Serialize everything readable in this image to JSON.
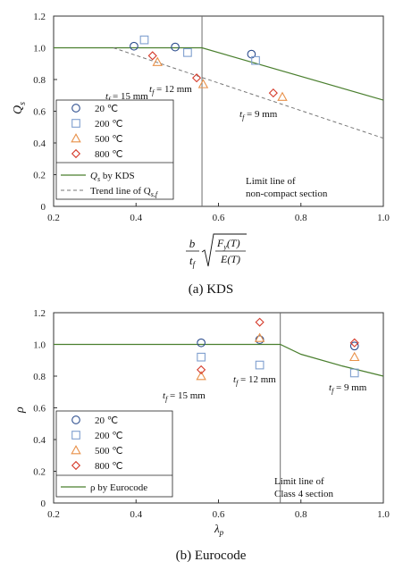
{
  "colors": {
    "line": "#4a7f2e",
    "c20": "#2f4f8f",
    "c200": "#7f9fcf",
    "c500": "#e8914a",
    "c800": "#d53a2a",
    "axis": "#333333",
    "limit": "#6d6d6d"
  },
  "chart_data": [
    {
      "type": "scatter",
      "caption": "(a) KDS",
      "ylabel_main": "Q",
      "ylabel_sub": "s",
      "xlabel_text": {
        "b": "b",
        "tf": "t",
        "tf_sub": "f",
        "num_main": "F",
        "num_sub": "y",
        "num_arg": "(T)",
        "den": "E(T)"
      },
      "xlim": [
        0.2,
        1.0
      ],
      "ylim": [
        0,
        1.2
      ],
      "xticks": [
        "0.2",
        "0.4",
        "0.6",
        "0.8",
        "1.0"
      ],
      "yticks": [
        "0",
        "0.2",
        "0.4",
        "0.6",
        "0.8",
        "1.0",
        "1.2"
      ],
      "xtick_values": [
        0.2,
        0.4,
        0.6,
        0.8,
        1.0
      ],
      "ytick_values": [
        0,
        0.2,
        0.4,
        0.6,
        0.8,
        1.0,
        1.2
      ],
      "series": [
        {
          "name": "20 ℃",
          "marker": "circle",
          "x": [
            0.395,
            0.495,
            0.68
          ],
          "y": [
            1.01,
            1.005,
            0.96
          ]
        },
        {
          "name": "200 ℃",
          "marker": "square",
          "x": [
            0.42,
            0.525,
            0.69
          ],
          "y": [
            1.05,
            0.97,
            0.92
          ]
        },
        {
          "name": "500 ℃",
          "marker": "triangle",
          "x": [
            0.452,
            0.563,
            0.755
          ],
          "y": [
            0.91,
            0.77,
            0.69
          ]
        },
        {
          "name": "800 ℃",
          "marker": "diamond",
          "x": [
            0.44,
            0.547,
            0.733
          ],
          "y": [
            0.95,
            0.81,
            0.715
          ]
        }
      ],
      "curves": [
        {
          "name": "Q_s by KDS",
          "style": "solid",
          "x": [
            0.2,
            0.56,
            1.0
          ],
          "y": [
            1.0,
            1.0,
            0.67
          ]
        },
        {
          "name": "Trend line of Q_s,f",
          "style": "dashed",
          "x": [
            0.345,
            1.0
          ],
          "y": [
            1.0,
            0.43
          ]
        }
      ],
      "limit_line_x": 0.56,
      "legend": {
        "items": [
          "20 ℃",
          "200 ℃",
          "500 ℃",
          "800 ℃"
        ],
        "kds_main": "Q",
        "kds_sub": "s",
        "kds_text": " by KDS",
        "trend_text": "Trend line of Q",
        "trend_sub": "s,f"
      },
      "annotations": [
        {
          "main": "t",
          "sub": "f",
          "text": " = 15 mm"
        },
        {
          "main": "t",
          "sub": "f",
          "text": " = 12 mm"
        },
        {
          "main": "t",
          "sub": "f",
          "text": " = 9 mm"
        }
      ],
      "limit_label": [
        "Limit line of",
        "non-compact section"
      ]
    },
    {
      "type": "scatter",
      "caption": "(b) Eurocode",
      "ylabel_main": "ρ",
      "xlabel_main": "λ",
      "xlabel_sub": "p",
      "xlim": [
        0.2,
        1.0
      ],
      "ylim": [
        0,
        1.2
      ],
      "xticks": [
        "0.2",
        "0.4",
        "0.6",
        "0.8",
        "1.0"
      ],
      "yticks": [
        "0",
        "0.2",
        "0.4",
        "0.6",
        "0.8",
        "1.0",
        "1.2"
      ],
      "xtick_values": [
        0.2,
        0.4,
        0.6,
        0.8,
        1.0
      ],
      "ytick_values": [
        0,
        0.2,
        0.4,
        0.6,
        0.8,
        1.0,
        1.2
      ],
      "series": [
        {
          "name": "20 ℃",
          "marker": "circle",
          "x": [
            0.558,
            0.7,
            0.93
          ],
          "y": [
            1.01,
            1.03,
            0.99
          ]
        },
        {
          "name": "200 ℃",
          "marker": "square",
          "x": [
            0.558,
            0.7,
            0.93
          ],
          "y": [
            0.92,
            0.87,
            0.82
          ]
        },
        {
          "name": "500 ℃",
          "marker": "triangle",
          "x": [
            0.558,
            0.7,
            0.93
          ],
          "y": [
            0.8,
            1.04,
            0.92
          ]
        },
        {
          "name": "800 ℃",
          "marker": "diamond",
          "x": [
            0.558,
            0.7,
            0.93
          ],
          "y": [
            0.84,
            1.14,
            1.01
          ]
        }
      ],
      "curves": [
        {
          "name": "ρ by Eurocode",
          "style": "solid",
          "x": [
            0.2,
            0.75,
            0.8,
            0.9,
            1.0
          ],
          "y": [
            1.0,
            1.0,
            0.938,
            0.864,
            0.8
          ]
        }
      ],
      "limit_line_x": 0.75,
      "legend": {
        "items": [
          "20 ℃",
          "200 ℃",
          "500 ℃",
          "800 ℃"
        ],
        "line_text": "ρ by Eurocode"
      },
      "annotations": [
        {
          "main": "t",
          "sub": "f",
          "text": " = 15 mm"
        },
        {
          "main": "t",
          "sub": "f",
          "text": " = 12 mm"
        },
        {
          "main": "t",
          "sub": "f",
          "text": " = 9 mm"
        }
      ],
      "limit_label": [
        "Limit line of",
        "Class 4 section"
      ]
    }
  ]
}
